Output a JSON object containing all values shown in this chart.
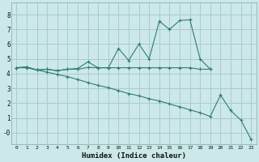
{
  "xlabel": "Humidex (Indice chaleur)",
  "bg_color": "#cce8e8",
  "grid_color": "#aacccc",
  "line_color": "#2e7d72",
  "xlim": [
    -0.5,
    23.5
  ],
  "ylim": [
    -0.8,
    8.8
  ],
  "xticks": [
    0,
    1,
    2,
    3,
    4,
    5,
    6,
    7,
    8,
    9,
    10,
    11,
    12,
    13,
    14,
    15,
    16,
    17,
    18,
    19,
    20,
    21,
    22,
    23
  ],
  "yticks": [
    0,
    1,
    2,
    3,
    4,
    5,
    6,
    7,
    8
  ],
  "ytick_labels": [
    "-0",
    "1",
    "2",
    "3",
    "4",
    "5",
    "6",
    "7",
    "8"
  ],
  "line1_x": [
    0,
    1,
    2,
    3,
    4,
    5,
    6,
    7,
    8,
    9,
    10,
    11,
    12,
    13,
    14,
    15,
    16,
    17,
    18,
    19
  ],
  "line1_y": [
    4.4,
    4.45,
    4.25,
    4.3,
    4.2,
    4.3,
    4.35,
    4.8,
    4.4,
    4.4,
    5.7,
    4.9,
    6.0,
    5.0,
    7.55,
    7.0,
    7.6,
    7.65,
    5.0,
    4.3
  ],
  "line2_x": [
    0,
    1,
    2,
    3,
    4,
    5,
    6,
    7,
    8,
    9,
    10,
    11,
    12,
    13,
    14,
    15,
    16,
    17,
    18,
    19
  ],
  "line2_y": [
    4.4,
    4.45,
    4.25,
    4.3,
    4.2,
    4.3,
    4.3,
    4.42,
    4.4,
    4.4,
    4.4,
    4.4,
    4.4,
    4.4,
    4.4,
    4.4,
    4.4,
    4.4,
    4.3,
    4.3
  ],
  "line3_x": [
    0,
    1,
    2,
    3,
    4,
    5,
    6,
    7,
    8,
    9,
    10,
    11,
    12,
    13,
    14,
    15,
    16,
    17,
    18,
    19,
    20,
    21,
    22,
    23
  ],
  "line3_y": [
    4.4,
    4.4,
    4.25,
    4.1,
    3.95,
    3.8,
    3.6,
    3.4,
    3.2,
    3.05,
    2.85,
    2.65,
    2.5,
    2.3,
    2.15,
    1.95,
    1.75,
    1.55,
    1.35,
    1.1,
    2.55,
    1.5,
    0.85,
    -0.45
  ]
}
